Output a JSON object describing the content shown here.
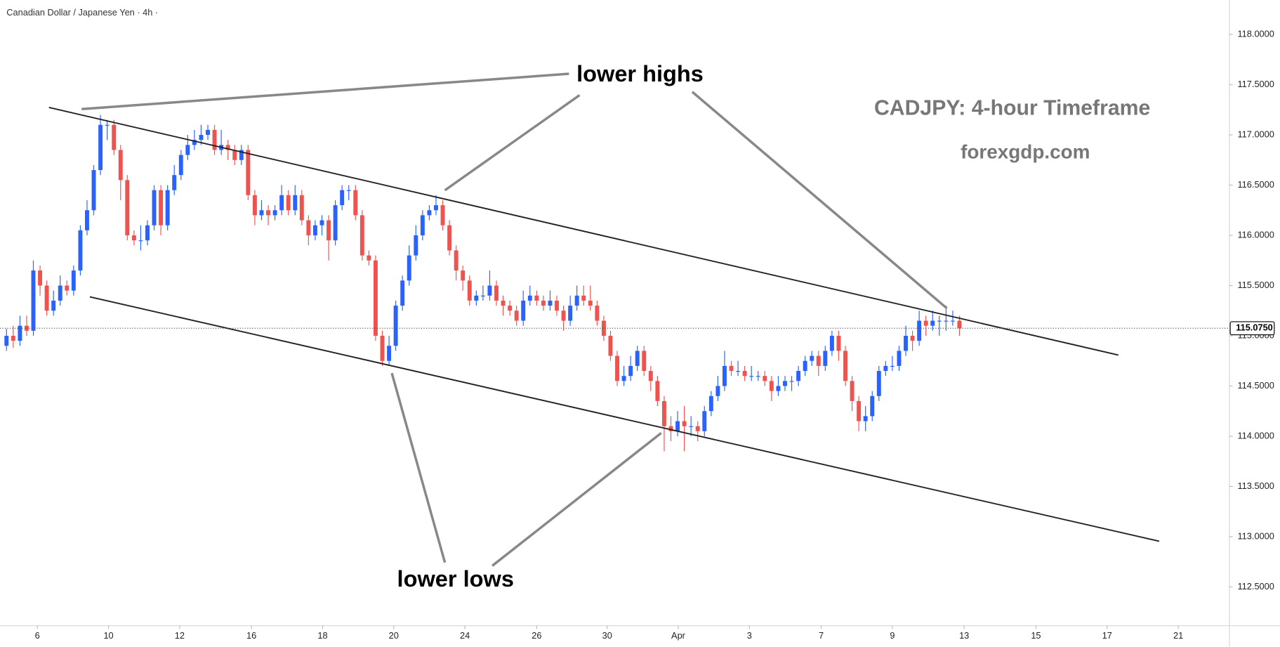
{
  "chart_data": {
    "type": "candlestick",
    "title": "Canadian Dollar / Japanese Yen · 4h ·",
    "annotations": [
      "lower highs",
      "lower lows",
      "CADJPY: 4-hour Timeframe",
      "forexgdp.com"
    ],
    "up_color": "#2962ff",
    "down_color": "#ef5350",
    "grid": false,
    "open": [
      114.9,
      115.0,
      114.95,
      115.1,
      115.05,
      115.65,
      115.5,
      115.25,
      115.35,
      115.5,
      115.45,
      115.65,
      116.05,
      116.25,
      116.65,
      117.1,
      117.1,
      116.85,
      116.55,
      116.0,
      115.95,
      115.95,
      116.1,
      116.45,
      116.1,
      116.45,
      116.6,
      116.8,
      116.9,
      116.95,
      117.0,
      117.05,
      116.85,
      116.9,
      116.85,
      116.75,
      116.85,
      116.4,
      116.2,
      116.25,
      116.2,
      116.25,
      116.4,
      116.25,
      116.4,
      116.15,
      116.0,
      116.1,
      116.15,
      115.95,
      116.3,
      116.45,
      116.45,
      116.2,
      115.8,
      115.75,
      115.0,
      114.75,
      114.9,
      115.3,
      115.55,
      115.8,
      116.0,
      116.2,
      116.25,
      116.3,
      116.1,
      115.85,
      115.65,
      115.55,
      115.35,
      115.4,
      115.4,
      115.5,
      115.35,
      115.3,
      115.25,
      115.15,
      115.35,
      115.4,
      115.35,
      115.3,
      115.35,
      115.25,
      115.15,
      115.3,
      115.4,
      115.35,
      115.3,
      115.15,
      115.0,
      114.8,
      114.55,
      114.6,
      114.7,
      114.85,
      114.65,
      114.55,
      114.35,
      114.1,
      114.05,
      114.15,
      114.1,
      114.1,
      114.05,
      114.25,
      114.4,
      114.5,
      114.7,
      114.65,
      114.65,
      114.6,
      114.6,
      114.6,
      114.55,
      114.45,
      114.5,
      114.55,
      114.55,
      114.65,
      114.75,
      114.8,
      114.7,
      114.85,
      115.0,
      114.85,
      114.55,
      114.35,
      114.15,
      114.2,
      114.4,
      114.65,
      114.7,
      114.7,
      114.85,
      115.0,
      114.95,
      115.15,
      115.1,
      115.15,
      115.15,
      115.15,
      115.15
    ],
    "high": [
      115.07,
      115.1,
      115.2,
      115.2,
      115.75,
      115.7,
      115.55,
      115.45,
      115.6,
      115.55,
      115.7,
      116.1,
      116.35,
      116.7,
      117.2,
      117.15,
      117.15,
      116.9,
      116.6,
      116.05,
      116.1,
      116.15,
      116.5,
      116.5,
      116.5,
      116.7,
      116.85,
      117.0,
      117.05,
      117.1,
      117.1,
      117.1,
      117.05,
      116.95,
      116.9,
      116.9,
      116.9,
      116.45,
      116.35,
      116.3,
      116.3,
      116.5,
      116.45,
      116.5,
      116.45,
      116.2,
      116.15,
      116.2,
      116.2,
      116.35,
      116.5,
      116.5,
      116.5,
      116.25,
      115.85,
      115.8,
      115.05,
      115.0,
      115.35,
      115.6,
      115.9,
      116.1,
      116.25,
      116.3,
      116.4,
      116.35,
      116.15,
      115.9,
      115.7,
      115.6,
      115.45,
      115.5,
      115.65,
      115.55,
      115.4,
      115.35,
      115.3,
      115.45,
      115.5,
      115.45,
      115.4,
      115.45,
      115.4,
      115.3,
      115.4,
      115.5,
      115.5,
      115.5,
      115.35,
      115.2,
      115.05,
      114.85,
      114.7,
      114.8,
      114.9,
      114.9,
      114.7,
      114.6,
      114.4,
      114.2,
      114.25,
      114.3,
      114.2,
      114.15,
      114.3,
      114.45,
      114.6,
      114.85,
      114.75,
      114.75,
      114.7,
      114.7,
      114.65,
      114.65,
      114.6,
      114.6,
      114.6,
      114.6,
      114.7,
      114.8,
      114.85,
      114.85,
      114.9,
      115.05,
      115.05,
      114.9,
      114.6,
      114.4,
      114.3,
      114.45,
      114.7,
      114.75,
      114.8,
      114.9,
      115.1,
      115.05,
      115.25,
      115.2,
      115.25,
      115.2,
      115.3,
      115.25,
      115.2
    ],
    "low": [
      114.85,
      114.88,
      114.9,
      115.0,
      115.0,
      115.4,
      115.2,
      115.2,
      115.3,
      115.4,
      115.4,
      115.6,
      116.0,
      116.2,
      116.6,
      116.95,
      116.8,
      116.35,
      115.95,
      115.9,
      115.85,
      115.9,
      116.05,
      116.0,
      116.05,
      116.4,
      116.55,
      116.75,
      116.85,
      116.9,
      116.95,
      116.8,
      116.8,
      116.75,
      116.7,
      116.7,
      116.35,
      116.1,
      116.15,
      116.1,
      116.15,
      116.2,
      116.2,
      116.2,
      116.1,
      115.9,
      115.95,
      116.0,
      115.75,
      115.9,
      116.25,
      116.35,
      116.15,
      115.75,
      115.7,
      114.95,
      114.7,
      114.7,
      114.85,
      115.25,
      115.5,
      115.75,
      115.95,
      116.15,
      116.2,
      116.05,
      115.8,
      115.55,
      115.45,
      115.3,
      115.3,
      115.35,
      115.35,
      115.3,
      115.2,
      115.2,
      115.1,
      115.1,
      115.3,
      115.3,
      115.25,
      115.25,
      115.2,
      115.05,
      115.1,
      115.25,
      115.3,
      115.25,
      115.1,
      114.95,
      114.75,
      114.5,
      114.5,
      114.55,
      114.65,
      114.6,
      114.45,
      114.3,
      113.85,
      113.95,
      114.0,
      113.85,
      114.0,
      113.95,
      114.0,
      114.2,
      114.35,
      114.45,
      114.6,
      114.6,
      114.55,
      114.55,
      114.55,
      114.5,
      114.35,
      114.4,
      114.45,
      114.45,
      114.5,
      114.6,
      114.7,
      114.6,
      114.65,
      114.8,
      114.75,
      114.5,
      114.25,
      114.05,
      114.05,
      114.15,
      114.35,
      114.6,
      114.65,
      114.65,
      114.8,
      114.85,
      114.9,
      115.0,
      115.05,
      115.0,
      115.05,
      115.1,
      115.0
    ],
    "close": [
      115.0,
      114.95,
      115.1,
      115.05,
      115.65,
      115.5,
      115.25,
      115.35,
      115.5,
      115.45,
      115.65,
      116.05,
      116.25,
      116.65,
      117.1,
      117.1,
      116.85,
      116.55,
      116.0,
      115.95,
      115.95,
      116.1,
      116.45,
      116.1,
      116.45,
      116.6,
      116.8,
      116.9,
      116.95,
      117.0,
      117.05,
      116.85,
      116.9,
      116.85,
      116.75,
      116.85,
      116.4,
      116.2,
      116.25,
      116.2,
      116.25,
      116.4,
      116.25,
      116.4,
      116.15,
      116.0,
      116.1,
      116.15,
      115.95,
      116.3,
      116.45,
      116.45,
      116.2,
      115.8,
      115.75,
      115.0,
      114.75,
      114.9,
      115.3,
      115.55,
      115.8,
      116.0,
      116.2,
      116.25,
      116.3,
      116.1,
      115.85,
      115.65,
      115.55,
      115.35,
      115.4,
      115.4,
      115.5,
      115.35,
      115.3,
      115.25,
      115.15,
      115.35,
      115.4,
      115.35,
      115.3,
      115.35,
      115.25,
      115.15,
      115.3,
      115.4,
      115.35,
      115.3,
      115.15,
      115.0,
      114.8,
      114.55,
      114.6,
      114.7,
      114.85,
      114.65,
      114.55,
      114.35,
      114.1,
      114.05,
      114.15,
      114.1,
      114.1,
      114.05,
      114.25,
      114.4,
      114.5,
      114.7,
      114.65,
      114.65,
      114.6,
      114.6,
      114.6,
      114.55,
      114.45,
      114.5,
      114.55,
      114.55,
      114.65,
      114.75,
      114.8,
      114.7,
      114.85,
      115.0,
      114.85,
      114.55,
      114.35,
      114.15,
      114.2,
      114.4,
      114.65,
      114.7,
      114.7,
      114.85,
      115.0,
      114.95,
      115.15,
      115.1,
      115.15,
      115.15,
      115.15,
      115.15,
      115.075
    ],
    "last_price": {
      "value": 115.075,
      "label": "115.0750"
    },
    "xlim": [
      -0.97,
      182.1
    ],
    "xticks": [
      {
        "value": 4.6,
        "label": "6"
      },
      {
        "value": 15.2,
        "label": "10"
      },
      {
        "value": 25.8,
        "label": "12"
      },
      {
        "value": 36.5,
        "label": "16"
      },
      {
        "value": 47.1,
        "label": "18"
      },
      {
        "value": 57.7,
        "label": "20"
      },
      {
        "value": 68.3,
        "label": "24"
      },
      {
        "value": 79.0,
        "label": "26"
      },
      {
        "value": 89.5,
        "label": "30"
      },
      {
        "value": 100.1,
        "label": "Apr"
      },
      {
        "value": 110.7,
        "label": "3"
      },
      {
        "value": 121.4,
        "label": "7"
      },
      {
        "value": 132.0,
        "label": "9"
      },
      {
        "value": 142.7,
        "label": "13"
      },
      {
        "value": 153.4,
        "label": "15"
      },
      {
        "value": 164.0,
        "label": "17"
      },
      {
        "value": 174.6,
        "label": "21"
      }
    ],
    "ylim": [
      112.122,
      118.343
    ],
    "yticks": [
      {
        "value": 112.5,
        "label": "112.5000"
      },
      {
        "value": 113.0,
        "label": "113.0000"
      },
      {
        "value": 113.5,
        "label": "113.5000"
      },
      {
        "value": 114.0,
        "label": "114.0000"
      },
      {
        "value": 114.5,
        "label": "114.5000"
      },
      {
        "value": 115.0,
        "label": "115.0000"
      },
      {
        "value": 115.5,
        "label": "115.5000"
      },
      {
        "value": 116.0,
        "label": "116.0000"
      },
      {
        "value": 116.5,
        "label": "116.5000"
      },
      {
        "value": 117.0,
        "label": "117.0000"
      },
      {
        "value": 117.5,
        "label": "117.5000"
      },
      {
        "value": 118.0,
        "label": "118.0000"
      }
    ]
  }
}
